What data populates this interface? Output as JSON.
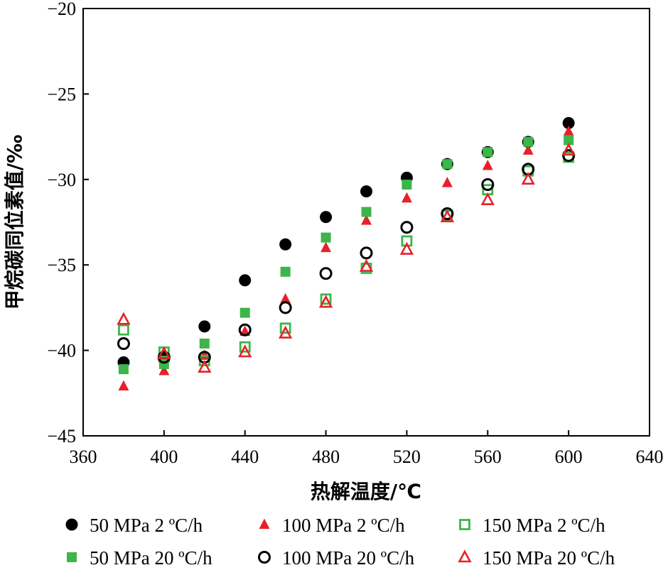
{
  "chart_data": {
    "type": "scatter",
    "xlabel": "热解温度/℃",
    "ylabel": "甲烷碳同位素值/‰",
    "xlim": [
      360,
      640
    ],
    "ylim": [
      -45,
      -20
    ],
    "xticks": [
      360,
      400,
      440,
      480,
      520,
      560,
      600,
      640
    ],
    "yticks": [
      -20,
      -25,
      -30,
      -35,
      -40,
      -45
    ],
    "xtick_labels": [
      "360",
      "400",
      "440",
      "480",
      "520",
      "560",
      "600",
      "640"
    ],
    "ytick_labels": [
      "−20",
      "−25",
      "−30",
      "−35",
      "−40",
      "−45"
    ],
    "grid": false,
    "legend_position": "bottom",
    "series": [
      {
        "name": "50 MPa 2 ºC/h",
        "marker": "circle-filled",
        "color": "#000000",
        "x": [
          380,
          400,
          420,
          440,
          460,
          480,
          500,
          520,
          540,
          560,
          580,
          600
        ],
        "y": [
          -40.7,
          -40.5,
          -38.6,
          -35.9,
          -33.8,
          -32.2,
          -30.7,
          -29.9,
          -29.1,
          -28.4,
          -27.8,
          -26.7
        ]
      },
      {
        "name": "100 MPa 2 ºC/h",
        "marker": "triangle-filled",
        "color": "#e8202a",
        "x": [
          380,
          400,
          420,
          440,
          460,
          480,
          500,
          520,
          540,
          560,
          580,
          600
        ],
        "y": [
          -42.1,
          -41.2,
          -40.3,
          -38.9,
          -37.0,
          -34.0,
          -32.4,
          -31.1,
          -30.2,
          -29.2,
          -28.3,
          -27.2
        ]
      },
      {
        "name": "150 MPa 2 ºC/h",
        "marker": "square-open",
        "color": "#3cb54a",
        "x": [
          380,
          400,
          420,
          440,
          460,
          480,
          500,
          520,
          540,
          560,
          580,
          600
        ],
        "y": [
          -38.8,
          -40.1,
          -40.6,
          -39.8,
          -38.7,
          -37.0,
          -35.2,
          -33.6,
          -32.1,
          -30.6,
          -29.5,
          -28.7
        ]
      },
      {
        "name": "50 MPa 20 ºC/h",
        "marker": "square-filled",
        "color": "#3cb54a",
        "x": [
          380,
          400,
          420,
          440,
          460,
          480,
          500,
          520,
          540,
          560,
          580,
          600
        ],
        "y": [
          -41.1,
          -40.8,
          -39.6,
          -37.8,
          -35.4,
          -33.4,
          -31.9,
          -30.3,
          -29.1,
          -28.4,
          -27.8,
          -27.7
        ]
      },
      {
        "name": "100 MPa 20 ºC/h",
        "marker": "circle-open",
        "color": "#000000",
        "x": [
          380,
          400,
          420,
          440,
          460,
          480,
          500,
          520,
          540,
          560,
          580,
          600
        ],
        "y": [
          -39.6,
          -40.4,
          -40.4,
          -38.8,
          -37.5,
          -35.5,
          -34.3,
          -32.8,
          -32.0,
          -30.3,
          -29.4,
          -28.6
        ]
      },
      {
        "name": "150 MPa 20 ºC/h",
        "marker": "triangle-open",
        "color": "#e8202a",
        "x": [
          380,
          400,
          420,
          440,
          460,
          480,
          500,
          520,
          540,
          560,
          580,
          600
        ],
        "y": [
          -38.2,
          -40.2,
          -41.0,
          -40.1,
          -39.0,
          -37.2,
          -35.1,
          -34.1,
          -32.2,
          -31.2,
          -30.0,
          -28.3
        ]
      }
    ]
  }
}
